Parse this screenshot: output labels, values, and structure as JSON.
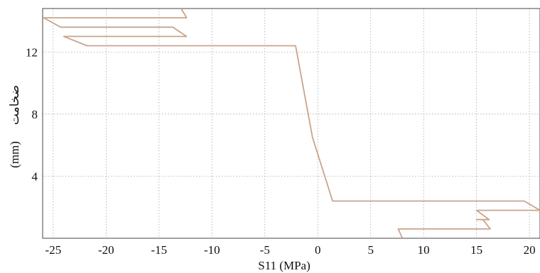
{
  "chart_data": {
    "type": "line",
    "title": "",
    "xlabel": "S11 (MPa)",
    "ylabel_text": "ضخامت",
    "ylabel_unit": "(mm)",
    "xlim": [
      -26,
      21
    ],
    "ylim": [
      0,
      14.8
    ],
    "x_ticks": [
      -25,
      -20,
      -15,
      -10,
      -5,
      0,
      5,
      10,
      15,
      20
    ],
    "y_ticks": [
      4,
      8,
      12
    ],
    "grid": true,
    "line_color": "#c8a48c",
    "series": [
      {
        "points": [
          [
            8.0,
            0.0
          ],
          [
            7.6,
            0.6
          ],
          [
            16.3,
            0.6
          ],
          [
            15.6,
            1.2
          ],
          [
            16.0,
            1.2
          ],
          [
            15.0,
            1.2
          ],
          [
            15.5,
            1.2
          ],
          [
            16.2,
            1.2
          ],
          [
            15.0,
            1.8
          ],
          [
            21.0,
            1.8
          ],
          [
            19.5,
            2.4
          ],
          [
            1.4,
            2.4
          ],
          [
            -0.5,
            6.5
          ],
          [
            -2.1,
            12.4
          ],
          [
            -21.8,
            12.4
          ],
          [
            -24.0,
            13.0
          ],
          [
            -12.4,
            13.0
          ],
          [
            -13.7,
            13.6
          ],
          [
            -24.3,
            13.6
          ],
          [
            -25.9,
            14.2
          ],
          [
            -12.4,
            14.2
          ],
          [
            -12.9,
            14.8
          ]
        ]
      }
    ]
  }
}
